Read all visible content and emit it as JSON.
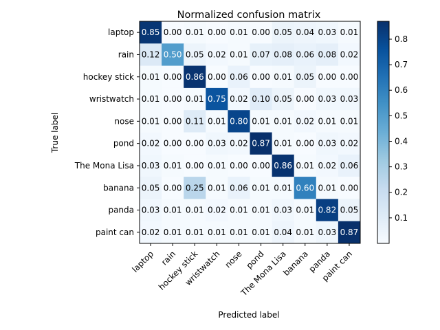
{
  "chart_data": {
    "type": "heatmap",
    "title": "Normalized confusion matrix",
    "xlabel": "Predicted label",
    "ylabel": "True label",
    "labels": [
      "laptop",
      "rain",
      "hockey stick",
      "wristwatch",
      "nose",
      "pond",
      "The Mona Lisa",
      "banana",
      "panda",
      "paint can"
    ],
    "values": [
      [
        0.85,
        0.0,
        0.01,
        0.0,
        0.01,
        0.0,
        0.05,
        0.04,
        0.03,
        0.01
      ],
      [
        0.12,
        0.5,
        0.05,
        0.02,
        0.01,
        0.07,
        0.08,
        0.06,
        0.08,
        0.02
      ],
      [
        0.01,
        0.0,
        0.86,
        0.0,
        0.06,
        0.0,
        0.01,
        0.05,
        0.0,
        0.0
      ],
      [
        0.01,
        0.0,
        0.01,
        0.75,
        0.02,
        0.1,
        0.05,
        0.0,
        0.03,
        0.03
      ],
      [
        0.01,
        0.0,
        0.11,
        0.01,
        0.8,
        0.01,
        0.01,
        0.02,
        0.01,
        0.01
      ],
      [
        0.02,
        0.0,
        0.0,
        0.03,
        0.02,
        0.87,
        0.01,
        0.0,
        0.03,
        0.02
      ],
      [
        0.03,
        0.01,
        0.0,
        0.01,
        0.0,
        0.0,
        0.86,
        0.01,
        0.02,
        0.06
      ],
      [
        0.05,
        0.0,
        0.25,
        0.01,
        0.06,
        0.01,
        0.01,
        0.6,
        0.01,
        0.0
      ],
      [
        0.03,
        0.01,
        0.01,
        0.02,
        0.01,
        0.01,
        0.03,
        0.01,
        0.82,
        0.05
      ],
      [
        0.02,
        0.01,
        0.01,
        0.01,
        0.01,
        0.01,
        0.04,
        0.01,
        0.03,
        0.87
      ]
    ],
    "colormap": "Blues",
    "color_range": [
      0.0,
      0.87
    ],
    "colorbar_ticks": [
      0.1,
      0.2,
      0.3,
      0.4,
      0.5,
      0.6,
      0.7,
      0.8
    ],
    "text_color_light": "#ffffff",
    "text_color_dark": "#000000"
  }
}
